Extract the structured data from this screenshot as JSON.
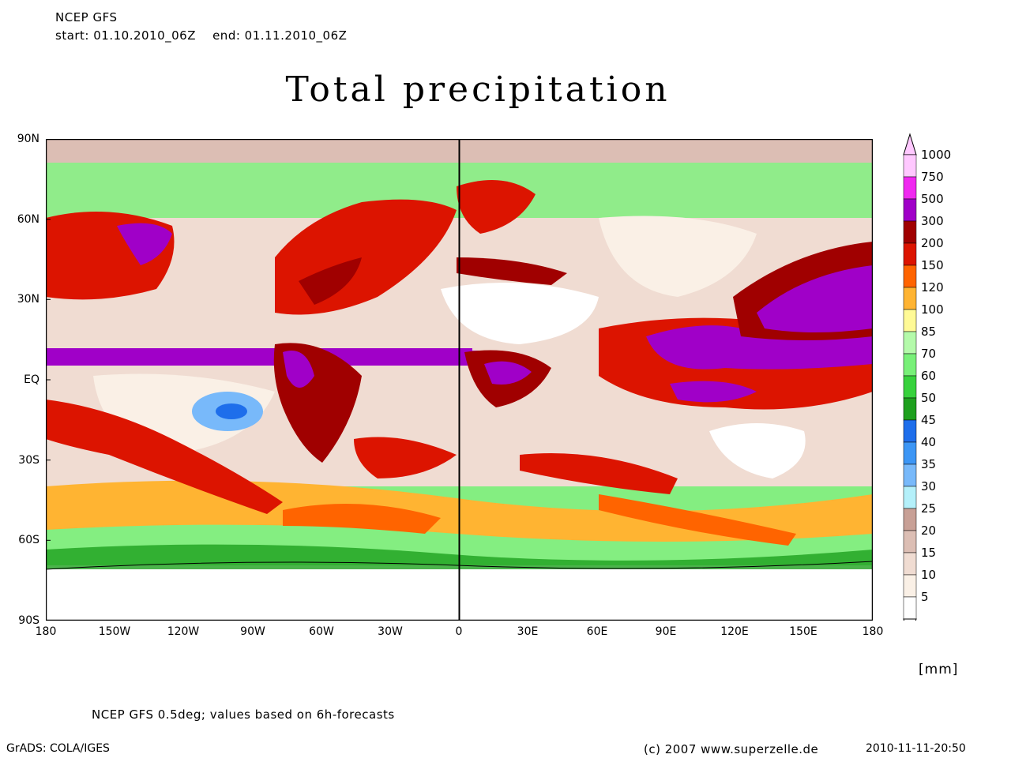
{
  "header": {
    "model": "NCEP GFS",
    "period": "start: 01.10.2010_06Z    end: 01.11.2010_06Z"
  },
  "title": "Total precipitation",
  "map": {
    "lat_labels": [
      "90N",
      "60N",
      "30N",
      "EQ",
      "30S",
      "60S",
      "90S"
    ],
    "lon_labels": [
      "180",
      "150W",
      "120W",
      "90W",
      "60W",
      "30W",
      "0",
      "30E",
      "60E",
      "90E",
      "120E",
      "150E",
      "180"
    ]
  },
  "colorbar": {
    "unit": "[mm]",
    "levels": [
      {
        "label": "1000",
        "color": "#ffc8ff"
      },
      {
        "label": "750",
        "color": "#f028f0"
      },
      {
        "label": "500",
        "color": "#a000c8"
      },
      {
        "label": "300",
        "color": "#a00000"
      },
      {
        "label": "200",
        "color": "#dc1400"
      },
      {
        "label": "150",
        "color": "#ff6400"
      },
      {
        "label": "120",
        "color": "#ffb432"
      },
      {
        "label": "100",
        "color": "#fffa96"
      },
      {
        "label": "85",
        "color": "#b4faaa"
      },
      {
        "label": "70",
        "color": "#78f078"
      },
      {
        "label": "60",
        "color": "#37d23c"
      },
      {
        "label": "50",
        "color": "#1ea01e"
      },
      {
        "label": "45",
        "color": "#1e6eeb"
      },
      {
        "label": "40",
        "color": "#3c96f5"
      },
      {
        "label": "35",
        "color": "#78b9fa"
      },
      {
        "label": "30",
        "color": "#b4f0fa"
      },
      {
        "label": "25",
        "color": "#c8a096"
      },
      {
        "label": "20",
        "color": "#dcbeb4"
      },
      {
        "label": "15",
        "color": "#f0dcd2"
      },
      {
        "label": "10",
        "color": "#faf0e6"
      },
      {
        "label": "5",
        "color": "#ffffff"
      }
    ]
  },
  "footer": {
    "note": "NCEP GFS 0.5deg; values based on 6h-forecasts",
    "grads": "GrADS: COLA/IGES",
    "copyright": "(c) 2007 www.superzelle.de",
    "timestamp": "2010-11-11-20:50"
  }
}
